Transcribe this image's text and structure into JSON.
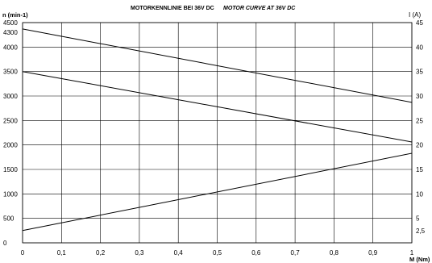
{
  "chart_data": {
    "type": "line",
    "title": "MOTORKENNLINIE BEI 36V DC",
    "subtitle": "MOTOR CURVE AT 36V DC",
    "xlabel": "M (Nm)",
    "ylabel_left": "n (min-1)",
    "ylabel_right": "I (A)",
    "xlim": [
      0,
      1
    ],
    "ylim_left": [
      0,
      4500
    ],
    "ylim_right": [
      0,
      45
    ],
    "x_ticks": [
      "0",
      "0,1",
      "0,2",
      "0,3",
      "0,4",
      "0,5",
      "0,6",
      "0,7",
      "0,8",
      "0,9",
      "1"
    ],
    "y_left_ticks": [
      {
        "value": 0,
        "label": "0"
      },
      {
        "value": 500,
        "label": "500"
      },
      {
        "value": 1000,
        "label": "1000"
      },
      {
        "value": 1500,
        "label": "1500"
      },
      {
        "value": 2000,
        "label": "2000"
      },
      {
        "value": 2500,
        "label": "2500"
      },
      {
        "value": 3000,
        "label": "3000"
      },
      {
        "value": 3500,
        "label": "3500"
      },
      {
        "value": 4000,
        "label": "4000"
      },
      {
        "value": 4300,
        "label": "4300"
      },
      {
        "value": 4500,
        "label": "4500"
      }
    ],
    "y_right_ticks": [
      {
        "value": 2.5,
        "label": "2,5"
      },
      {
        "value": 5,
        "label": "5"
      },
      {
        "value": 10,
        "label": "10"
      },
      {
        "value": 15,
        "label": "15"
      },
      {
        "value": 20,
        "label": "20"
      },
      {
        "value": 25,
        "label": "25"
      },
      {
        "value": 30,
        "label": "30"
      },
      {
        "value": 35,
        "label": "35"
      },
      {
        "value": 40,
        "label": "40"
      },
      {
        "value": 45,
        "label": "45"
      }
    ],
    "grid": true,
    "series": [
      {
        "axis": "left",
        "x": [
          0,
          1
        ],
        "values": [
          4370,
          2870
        ]
      },
      {
        "axis": "left",
        "x": [
          0,
          1
        ],
        "values": [
          3500,
          2060
        ]
      },
      {
        "axis": "right",
        "x": [
          0,
          1
        ],
        "values": [
          2.5,
          18.3
        ]
      }
    ]
  }
}
